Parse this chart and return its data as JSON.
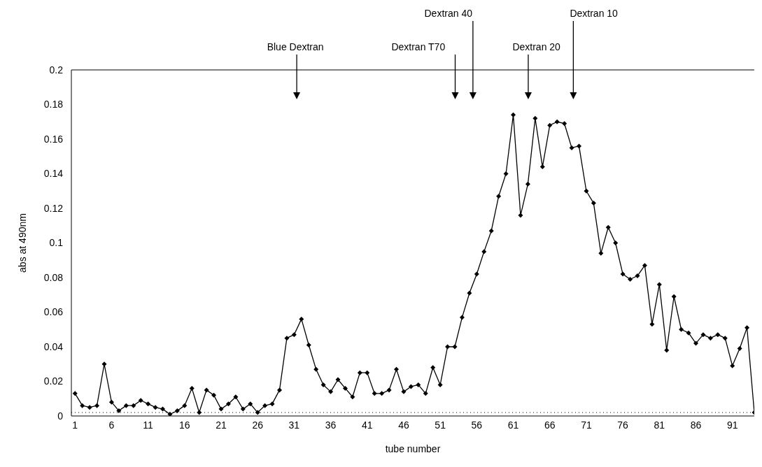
{
  "chart_data": {
    "type": "line",
    "xlabel": "tube number",
    "ylabel": "abs at 490nm",
    "x": [
      1,
      2,
      3,
      4,
      5,
      6,
      7,
      8,
      9,
      10,
      11,
      12,
      13,
      14,
      15,
      16,
      17,
      18,
      19,
      20,
      21,
      22,
      23,
      24,
      25,
      26,
      27,
      28,
      29,
      30,
      31,
      32,
      33,
      34,
      35,
      36,
      37,
      38,
      39,
      40,
      41,
      42,
      43,
      44,
      45,
      46,
      47,
      48,
      49,
      50,
      51,
      52,
      53,
      54,
      55,
      56,
      57,
      58,
      59,
      60,
      61,
      62,
      63,
      64,
      65,
      66,
      67,
      68,
      69,
      70,
      71,
      72,
      73,
      74,
      75,
      76,
      77,
      78,
      79,
      80,
      81,
      82,
      83,
      84,
      85,
      86,
      87,
      88,
      89,
      90,
      91,
      92,
      93,
      94
    ],
    "series": [
      {
        "color": "#000000",
        "values": [
          0.013,
          0.006,
          0.005,
          0.006,
          0.03,
          0.008,
          0.003,
          0.006,
          0.006,
          0.009,
          0.007,
          0.005,
          0.004,
          0.001,
          0.003,
          0.006,
          0.016,
          0.002,
          0.015,
          0.012,
          0.004,
          0.007,
          0.011,
          0.004,
          0.007,
          0.002,
          0.006,
          0.007,
          0.015,
          0.045,
          0.047,
          0.056,
          0.041,
          0.027,
          0.018,
          0.014,
          0.021,
          0.016,
          0.011,
          0.025,
          0.025,
          0.013,
          0.013,
          0.015,
          0.027,
          0.014,
          0.017,
          0.018,
          0.013,
          0.028,
          0.018,
          0.04,
          0.04,
          0.057,
          0.071,
          0.082,
          0.095,
          0.107,
          0.127,
          0.14,
          0.174,
          0.116,
          0.134,
          0.172,
          0.144,
          0.168,
          0.17,
          0.169,
          0.155,
          0.156,
          0.13,
          0.123,
          0.094,
          0.109,
          0.1,
          0.082,
          0.079,
          0.081,
          0.087,
          0.053,
          0.076,
          0.038,
          0.069,
          0.05,
          0.048,
          0.042,
          0.047,
          0.045,
          0.047,
          0.045,
          0.029,
          0.039,
          0.051,
          0.002
        ]
      }
    ],
    "xlim": [
      0.5,
      94
    ],
    "xticks": [
      1,
      6,
      11,
      16,
      21,
      26,
      31,
      36,
      41,
      46,
      51,
      56,
      61,
      66,
      71,
      76,
      81,
      86,
      91
    ],
    "ylim": [
      0,
      0.2
    ],
    "yticks": [
      0,
      0.02,
      0.04,
      0.06,
      0.08,
      0.1,
      0.12,
      0.14,
      0.16,
      0.18,
      0.2
    ],
    "grid": false,
    "legend": false,
    "marker": "diamond",
    "line_style": "solid",
    "ref_lines": [
      {
        "axis": "y",
        "value": 0.002,
        "line_style": "dotted",
        "color": "#000000"
      }
    ],
    "annotations": [
      "Blue Dextran",
      "Dextran T70",
      "Dextran 40",
      "Dextran 20",
      "Dextran 10"
    ]
  }
}
